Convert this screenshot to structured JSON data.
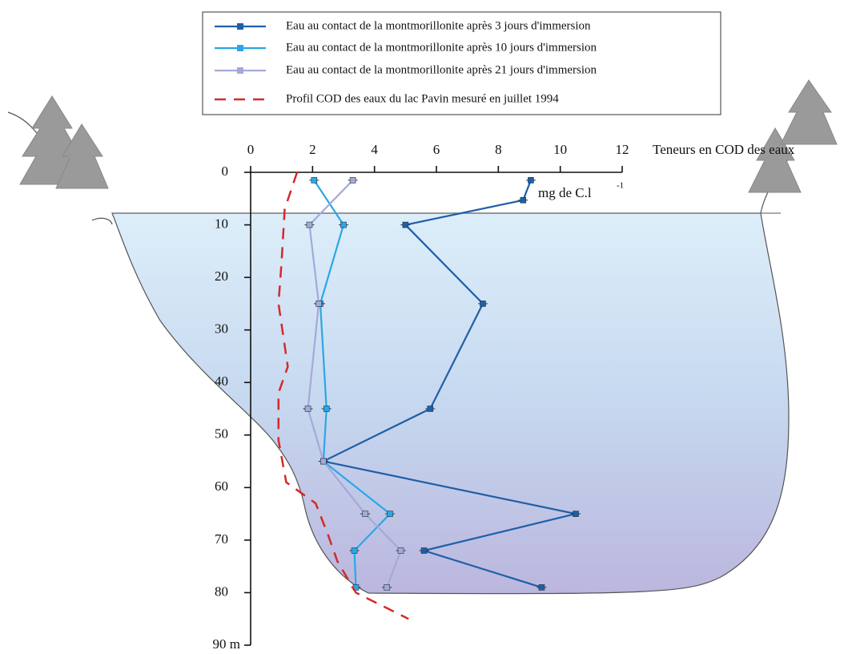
{
  "chart_data": {
    "type": "line",
    "x_label": "Teneurs en COD des eaux",
    "unit_label": "mg de C.l",
    "unit_exponent": "-1",
    "xlim": [
      0,
      12
    ],
    "xticks": [
      0,
      2,
      4,
      6,
      8,
      10,
      12
    ],
    "ylim": [
      0,
      90
    ],
    "yticks": [
      0,
      10,
      20,
      30,
      40,
      50,
      60,
      70,
      {
        "value": 90,
        "label": "90 m"
      }
    ],
    "y_extra_ticks": [
      80
    ],
    "series": [
      {
        "name": "Eau au contact de la montmorillonite après 3 jours d'immersion",
        "color": "#1f5fa8",
        "style": "solid-marker",
        "depths": [
          1.5,
          5.3,
          10,
          25,
          45,
          55,
          65,
          72,
          79
        ],
        "values": [
          9.05,
          8.8,
          5.0,
          7.5,
          5.8,
          2.35,
          10.5,
          5.6,
          9.4
        ]
      },
      {
        "name": "Eau au contact de la montmorillonite après 10 jours d'immersion",
        "color": "#2aa7e6",
        "style": "solid-marker",
        "depths": [
          1.5,
          10,
          25,
          45,
          55,
          65,
          72,
          79
        ],
        "values": [
          2.05,
          3.0,
          2.25,
          2.45,
          2.35,
          4.5,
          3.35,
          3.4
        ]
      },
      {
        "name": "Eau au contact de la montmorillonite après 21 jours d'immersion",
        "color": "#a5a9d8",
        "style": "solid-marker",
        "depths": [
          1.5,
          10,
          25,
          45,
          55,
          65,
          72,
          79
        ],
        "values": [
          3.3,
          1.9,
          2.2,
          1.85,
          2.35,
          3.7,
          4.85,
          4.4
        ]
      },
      {
        "name": "Profil COD des eaux du lac Pavin mesuré en juillet 1994",
        "color": "#d42a2a",
        "style": "dashed",
        "depths": [
          0,
          7,
          17,
          25,
          37,
          42,
          51,
          59,
          63,
          69,
          74,
          80,
          85
        ],
        "values": [
          1.5,
          1.1,
          1.0,
          0.9,
          1.2,
          0.9,
          0.9,
          1.15,
          2.1,
          2.5,
          2.8,
          3.4,
          5.1
        ]
      }
    ]
  }
}
